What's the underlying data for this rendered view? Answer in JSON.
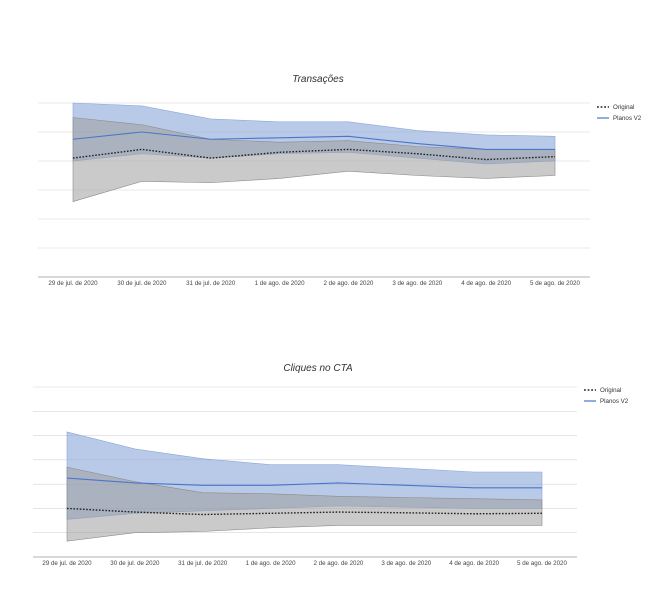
{
  "chart_data": [
    {
      "type": "line",
      "title": "Transações",
      "categories": [
        "29 de jul. de 2020",
        "30 de jul. de 2020",
        "31 de jul. de 2020",
        "1 de ago. de 2020",
        "2 de ago. de 2020",
        "3 de ago. de 2020",
        "4 de ago. de 2020",
        "5 de ago. de 2020"
      ],
      "grid": true,
      "legend_position": "top-right",
      "series": [
        {
          "name": "Original",
          "style": "dotted",
          "color": "#222222",
          "band_color": "#9e9e9e",
          "values": [
            4.1,
            4.4,
            4.1,
            4.3,
            4.4,
            4.25,
            4.05,
            4.15
          ],
          "lower": [
            2.6,
            3.3,
            3.25,
            3.4,
            3.65,
            3.5,
            3.4,
            3.5
          ],
          "upper": [
            5.5,
            5.25,
            4.75,
            4.65,
            4.7,
            4.5,
            4.4,
            4.4
          ]
        },
        {
          "name": "Planos V2",
          "style": "solid",
          "color": "#4a76c9",
          "band_color": "#7f9fd6",
          "values": [
            4.75,
            5.0,
            4.75,
            4.8,
            4.85,
            4.6,
            4.4,
            4.4
          ],
          "lower": [
            4.0,
            4.25,
            4.1,
            4.25,
            4.3,
            4.1,
            3.9,
            4.0
          ],
          "upper": [
            6.0,
            5.9,
            5.45,
            5.35,
            5.35,
            5.05,
            4.9,
            4.85
          ]
        }
      ]
    },
    {
      "type": "line",
      "title": "Cliques no CTA",
      "categories": [
        "29 de jul. de 2020",
        "30 de jul. de 2020",
        "31 de jul. de 2020",
        "1 de ago. de 2020",
        "2 de ago. de 2020",
        "3 de ago. de 2020",
        "4 de ago. de 2020",
        "5 de ago. de 2020"
      ],
      "grid": true,
      "legend_position": "top-right",
      "series": [
        {
          "name": "Original",
          "style": "dotted",
          "color": "#222222",
          "band_color": "#9e9e9e",
          "values": [
            2.0,
            1.85,
            1.75,
            1.8,
            1.85,
            1.82,
            1.78,
            1.8
          ],
          "lower": [
            0.65,
            1.0,
            1.05,
            1.2,
            1.3,
            1.3,
            1.3,
            1.3
          ],
          "upper": [
            3.7,
            3.1,
            2.65,
            2.6,
            2.5,
            2.45,
            2.4,
            2.35
          ]
        },
        {
          "name": "Planos V2",
          "style": "solid",
          "color": "#4a76c9",
          "band_color": "#7f9fd6",
          "values": [
            3.25,
            3.05,
            2.95,
            2.95,
            3.05,
            2.95,
            2.85,
            2.85
          ],
          "lower": [
            1.55,
            1.8,
            1.9,
            2.0,
            2.1,
            2.05,
            2.0,
            2.0
          ],
          "upper": [
            5.15,
            4.45,
            4.05,
            3.8,
            3.8,
            3.65,
            3.5,
            3.5
          ]
        }
      ]
    }
  ]
}
